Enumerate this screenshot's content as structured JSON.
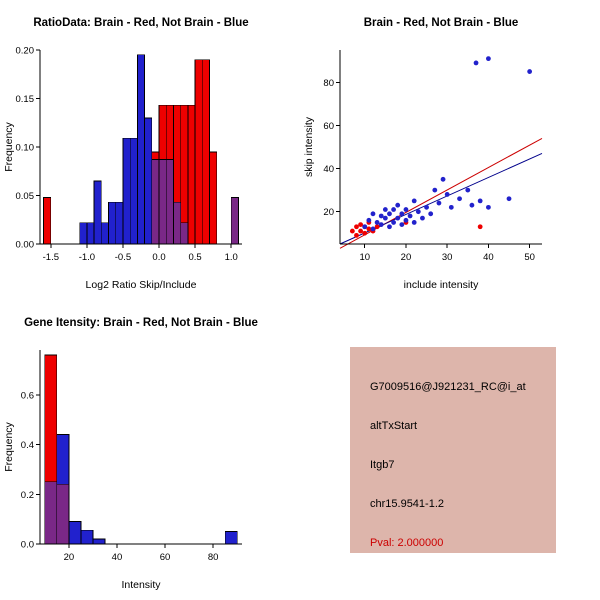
{
  "window": {
    "background": "#ffffff"
  },
  "info_box": {
    "background": "#ddb5ab",
    "text_color": "#000000",
    "pval_color": "#cc0000",
    "probe_id": "G7009516@J921231_RC@i_at",
    "event_type": "altTxStart",
    "gene": "Itgb7",
    "location": "chr15.9541-1.2",
    "pval": "Pval: 2.000000"
  },
  "chart_data": [
    {
      "type": "bar",
      "subtype": "histogram-overlay",
      "title": "RatioData: Brain - Red, Not Brain - Blue",
      "xlabel": "Log2 Ratio Skip/Include",
      "ylabel": "Frequency",
      "xlim": [
        -1.65,
        1.15
      ],
      "ylim": [
        0,
        0.2
      ],
      "xticks": [
        -1.5,
        -1.0,
        -0.5,
        0.0,
        0.5,
        1.0
      ],
      "xtick_labels": [
        "-1.5",
        "-1.0",
        "-0.5",
        "0.0",
        "0.5",
        "1.0"
      ],
      "yticks": [
        0,
        0.05,
        0.1,
        0.15,
        0.2
      ],
      "ytick_labels": [
        "0.00",
        "0.05",
        "0.10",
        "0.15",
        "0.20"
      ],
      "bin_width": 0.1,
      "overlap_color": "#7a2887",
      "legend": "Brain - Red, Not Brain - Blue",
      "grid": false,
      "series": [
        {
          "name": "Brain",
          "color": "#ee0000",
          "bins": [
            [
              -1.6,
              0.048
            ],
            [
              -0.1,
              0.095
            ],
            [
              0,
              0.143
            ],
            [
              0.1,
              0.143
            ],
            [
              0.2,
              0.143
            ],
            [
              0.3,
              0.143
            ],
            [
              0.4,
              0.143
            ],
            [
              0.5,
              0.19
            ],
            [
              0.6,
              0.19
            ],
            [
              0.7,
              0.095
            ],
            [
              1,
              0.048
            ]
          ]
        },
        {
          "name": "Not Brain",
          "color": "#2121cd",
          "bins": [
            [
              -1.1,
              0.022
            ],
            [
              -1,
              0.022
            ],
            [
              -0.9,
              0.065
            ],
            [
              -0.8,
              0.022
            ],
            [
              -0.7,
              0.043
            ],
            [
              -0.6,
              0.043
            ],
            [
              -0.5,
              0.109
            ],
            [
              -0.4,
              0.109
            ],
            [
              -0.3,
              0.195
            ],
            [
              -0.2,
              0.13
            ],
            [
              -0.1,
              0.087
            ],
            [
              0,
              0.087
            ],
            [
              0.1,
              0.087
            ],
            [
              0.2,
              0.043
            ],
            [
              0.3,
              0.022
            ],
            [
              1,
              0.048
            ]
          ]
        }
      ]
    },
    {
      "type": "scatter",
      "title": "Brain - Red, Not Brain - Blue",
      "xlabel": "include intensity",
      "ylabel": "skip intensity",
      "xlim": [
        4,
        53
      ],
      "ylim": [
        5,
        95
      ],
      "xticks": [
        10,
        20,
        30,
        40,
        50
      ],
      "xtick_labels": [
        "10",
        "20",
        "30",
        "40",
        "50"
      ],
      "yticks": [
        20,
        40,
        60,
        80
      ],
      "ytick_labels": [
        "20",
        "40",
        "60",
        "80"
      ],
      "grid": false,
      "series": [
        {
          "name": "Brain",
          "color": "#ee0000",
          "points": [
            [
              7,
              11
            ],
            [
              8,
              9
            ],
            [
              8,
              13
            ],
            [
              9,
              11
            ],
            [
              9,
              14
            ],
            [
              10,
              10
            ],
            [
              10,
              13
            ],
            [
              11,
              12
            ],
            [
              11,
              15
            ],
            [
              12,
              11
            ],
            [
              13,
              13
            ],
            [
              20,
              15
            ],
            [
              38,
              13
            ]
          ]
        },
        {
          "name": "Not Brain",
          "color": "#2222cc",
          "points": [
            [
              10,
              13
            ],
            [
              11,
              16
            ],
            [
              12,
              12
            ],
            [
              12,
              19
            ],
            [
              13,
              15
            ],
            [
              14,
              14
            ],
            [
              14,
              18
            ],
            [
              15,
              17
            ],
            [
              15,
              21
            ],
            [
              16,
              13
            ],
            [
              16,
              19
            ],
            [
              17,
              15
            ],
            [
              17,
              21
            ],
            [
              18,
              17
            ],
            [
              18,
              23
            ],
            [
              19,
              14
            ],
            [
              19,
              19
            ],
            [
              20,
              16
            ],
            [
              20,
              21
            ],
            [
              21,
              18
            ],
            [
              22,
              15
            ],
            [
              22,
              25
            ],
            [
              23,
              20
            ],
            [
              24,
              17
            ],
            [
              25,
              22
            ],
            [
              26,
              19
            ],
            [
              27,
              30
            ],
            [
              28,
              24
            ],
            [
              29,
              35
            ],
            [
              30,
              28
            ],
            [
              31,
              22
            ],
            [
              33,
              26
            ],
            [
              35,
              30
            ],
            [
              36,
              23
            ],
            [
              38,
              25
            ],
            [
              40,
              22
            ],
            [
              45,
              26
            ],
            [
              37,
              89
            ],
            [
              40,
              91
            ],
            [
              50,
              85
            ]
          ]
        }
      ],
      "lines": [
        {
          "name": "brain-fit",
          "color": "#cc0000",
          "x1": 4,
          "y1": 3,
          "x2": 53,
          "y2": 54
        },
        {
          "name": "notbrain-fit",
          "color": "#00008b",
          "x1": 4,
          "y1": 5,
          "x2": 53,
          "y2": 47
        }
      ]
    },
    {
      "type": "bar",
      "subtype": "histogram-overlay",
      "title": "Gene Itensity: Brain - Red, Not Brain - Blue",
      "xlabel": "Intensity",
      "ylabel": "Frequency",
      "xlim": [
        8,
        92
      ],
      "ylim": [
        0,
        0.78
      ],
      "xticks": [
        20,
        40,
        60,
        80
      ],
      "xtick_labels": [
        "20",
        "40",
        "60",
        "80"
      ],
      "yticks": [
        0,
        0.2,
        0.4,
        0.6
      ],
      "ytick_labels": [
        "0.0",
        "0.2",
        "0.4",
        "0.6"
      ],
      "bin_width": 5,
      "overlap_color": "#7a2887",
      "grid": false,
      "series": [
        {
          "name": "Brain",
          "color": "#ee0000",
          "bins": [
            [
              10,
              0.76
            ],
            [
              15,
              0.24
            ]
          ]
        },
        {
          "name": "Not Brain",
          "color": "#2121cd",
          "bins": [
            [
              10,
              0.25
            ],
            [
              15,
              0.44
            ],
            [
              20,
              0.09
            ],
            [
              25,
              0.055
            ],
            [
              30,
              0.02
            ],
            [
              85,
              0.05
            ]
          ]
        }
      ]
    }
  ]
}
